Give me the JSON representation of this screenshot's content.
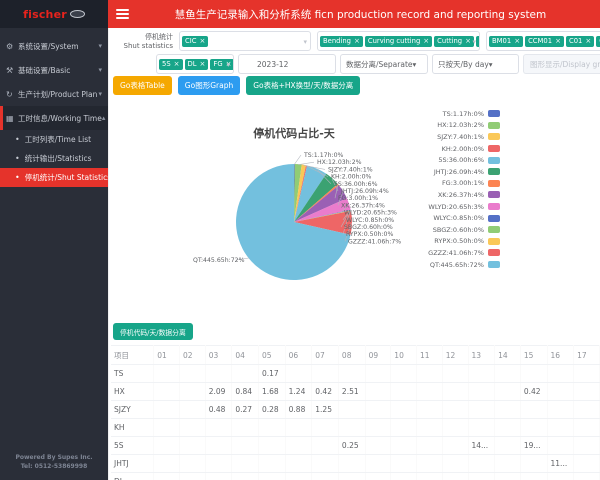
{
  "theme": {
    "accent_red": "#e5332b",
    "sidebar_bg": "#2a2e38",
    "tag_teal": "#17a589",
    "button_orange": "#f5a800",
    "button_blue": "#2d9cf0",
    "button_teal": "#17a589"
  },
  "brand": {
    "logo_text": "fischer"
  },
  "header": {
    "title": "慧鱼生产记录输入和分析系统 ficn production record and reporting system"
  },
  "sidebar": {
    "items": [
      {
        "label": "系统设置/System",
        "icon": "gear-icon",
        "expanded": false
      },
      {
        "label": "基础设置/Basic",
        "icon": "tools-icon",
        "expanded": false
      },
      {
        "label": "生产计划/Product Plan",
        "icon": "refresh-icon",
        "expanded": false
      },
      {
        "label": "工时信息/Working Time",
        "icon": "calendar-icon",
        "expanded": true
      }
    ],
    "subitems": [
      {
        "label": "工时列表/Time List",
        "active": false
      },
      {
        "label": "统计输出/Statistics",
        "active": false
      },
      {
        "label": "停机统计/Shut Statistics",
        "active": true
      }
    ],
    "footer_line1": "Powered By Supes Inc.",
    "footer_line2": "Tel: 0512-53869998"
  },
  "filters": {
    "shut_label_cn": "停机统计",
    "shut_label_en": "Shut statistics",
    "code_tags": [
      "CIC"
    ],
    "process_tags": [
      "Bending",
      "Curving cutting",
      "Cutting",
      "F"
    ],
    "machine_tags": [
      "BM01",
      "CCM01",
      "C01",
      "C02"
    ],
    "shift_tags": [
      "5S",
      "DL",
      "FG"
    ],
    "month": "2023-12",
    "separate": "数据分离/Separate",
    "by_day": "只按天/By day",
    "display_placeholder": "图形显示/Display graph"
  },
  "actions": {
    "go_table": "Go表格Table",
    "go_graph": "Go图形Graph",
    "go_table_hx": "Go表格+HX换型/天/数据分离",
    "code_day_separate": "停机代码/天/数据分离"
  },
  "chart_data": {
    "type": "pie",
    "title": "停机代码占比-天",
    "unit": "h",
    "legend_position": "right",
    "label_format": "name:hours h : pct%",
    "items": [
      {
        "name": "TS",
        "hours": "1.17",
        "pct": 0,
        "color": "#5470c6"
      },
      {
        "name": "HX",
        "hours": "12.03",
        "pct": 2,
        "color": "#91cc75"
      },
      {
        "name": "SJZY",
        "hours": "7.40",
        "pct": 1,
        "color": "#fac858"
      },
      {
        "name": "KH",
        "hours": "2.00",
        "pct": 0,
        "color": "#ee6666"
      },
      {
        "name": "5S",
        "hours": "36.00",
        "pct": 6,
        "color": "#73c0de"
      },
      {
        "name": "JHTJ",
        "hours": "26.09",
        "pct": 4,
        "color": "#3ba272"
      },
      {
        "name": "FG",
        "hours": "3.00",
        "pct": 1,
        "color": "#fc8452"
      },
      {
        "name": "XK",
        "hours": "26.37",
        "pct": 4,
        "color": "#9a60b4"
      },
      {
        "name": "WLYD",
        "hours": "20.65",
        "pct": 3,
        "color": "#ea7ccc"
      },
      {
        "name": "WLYC",
        "hours": "0.85",
        "pct": 0,
        "color": "#5470c6"
      },
      {
        "name": "SBGZ",
        "hours": "0.60",
        "pct": 0,
        "color": "#91cc75"
      },
      {
        "name": "RYPX",
        "hours": "0.50",
        "pct": 0,
        "color": "#fac858"
      },
      {
        "name": "GZZZ",
        "hours": "41.06",
        "pct": 7,
        "color": "#ee6666"
      },
      {
        "name": "QT",
        "hours": "445.65",
        "pct": 72,
        "color": "#73c0de"
      }
    ]
  },
  "table": {
    "columns": [
      "项目",
      "01",
      "02",
      "03",
      "04",
      "05",
      "06",
      "07",
      "08",
      "09",
      "10",
      "11",
      "12",
      "13",
      "14",
      "15",
      "16",
      "17"
    ],
    "rows": [
      {
        "name": "TS",
        "values": [
          "",
          "",
          "",
          "",
          "0.17",
          "",
          "",
          "",
          "",
          "",
          "",
          "",
          "",
          "",
          "",
          "",
          ""
        ]
      },
      {
        "name": "HX",
        "values": [
          "",
          "",
          "2.09",
          "0.84",
          "1.68",
          "1.24",
          "0.42",
          "2.51",
          "",
          "",
          "",
          "",
          "",
          "",
          "0.42",
          "",
          ""
        ]
      },
      {
        "name": "SJZY",
        "values": [
          "",
          "",
          "0.48",
          "0.27",
          "0.28",
          "0.88",
          "1.25",
          "",
          "",
          "",
          "",
          "",
          "",
          "",
          "",
          "",
          ""
        ]
      },
      {
        "name": "KH",
        "values": [
          "",
          "",
          "",
          "",
          "",
          "",
          "",
          "",
          "",
          "",
          "",
          "",
          "",
          "",
          "",
          "",
          ""
        ]
      },
      {
        "name": "5S",
        "values": [
          "",
          "",
          "",
          "",
          "",
          "",
          "",
          "0.25",
          "",
          "",
          "",
          "",
          "14...",
          "",
          "19...",
          "",
          ""
        ]
      },
      {
        "name": "JHTJ",
        "values": [
          "",
          "",
          "",
          "",
          "",
          "",
          "",
          "",
          "",
          "",
          "",
          "",
          "",
          "",
          "",
          "11...",
          ""
        ]
      },
      {
        "name": "DL",
        "values": [
          "",
          "",
          "",
          "",
          "",
          "",
          "",
          "",
          "",
          "",
          "",
          "",
          "",
          "",
          "",
          "",
          ""
        ]
      }
    ]
  }
}
